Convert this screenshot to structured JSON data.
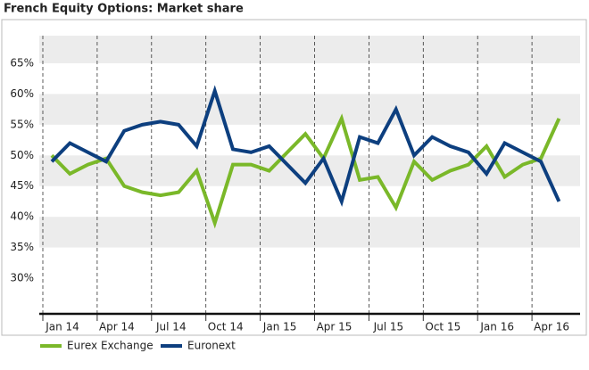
{
  "chart_data": {
    "type": "line",
    "title": "French Equity Options: Market share",
    "categories": [
      "Jan 14",
      null,
      null,
      "Apr 14",
      null,
      null,
      "Jul 14",
      null,
      null,
      "Oct 14",
      null,
      null,
      "Jan 15",
      null,
      null,
      "Apr 15",
      null,
      null,
      "Jul 15",
      null,
      null,
      "Oct 15",
      null,
      null,
      "Jan 16",
      null,
      null,
      "Apr 16",
      null
    ],
    "series": [
      {
        "name": "Eurex Exchange",
        "color": "#7ab829",
        "values": [
          50,
          47,
          48.5,
          49.5,
          45,
          44,
          43.5,
          44,
          47.5,
          39,
          48.5,
          48.5,
          47.5,
          50.5,
          53.5,
          49.5,
          56,
          46,
          46.5,
          41.5,
          49,
          46,
          47.5,
          48.5,
          51.5,
          46.5,
          48.5,
          49.5,
          56
        ]
      },
      {
        "name": "Euronext",
        "color": "#0d3f7f",
        "values": [
          49,
          52,
          50.5,
          49,
          54,
          55,
          55.5,
          55,
          51.5,
          60.5,
          51,
          50.5,
          51.5,
          48.5,
          45.5,
          49.5,
          42.5,
          53,
          52,
          57.5,
          50,
          53,
          51.5,
          50.5,
          47,
          52,
          50.5,
          49,
          42.5
        ]
      }
    ],
    "ylim": [
      24.2,
      69.5
    ],
    "yticks": [
      {
        "value": 30,
        "label": "30%"
      },
      {
        "value": 35,
        "label": "35%"
      },
      {
        "value": 40,
        "label": "40%"
      },
      {
        "value": 45,
        "label": "45%"
      },
      {
        "value": 50,
        "label": "50%"
      },
      {
        "value": 55,
        "label": "55%"
      },
      {
        "value": 60,
        "label": "60%"
      },
      {
        "value": 65,
        "label": "65%"
      }
    ],
    "legend": "bottom-left"
  }
}
